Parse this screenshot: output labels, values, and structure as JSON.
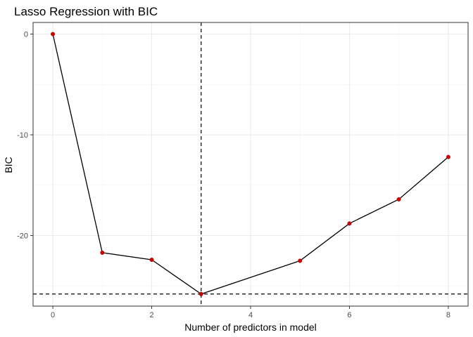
{
  "chart_data": {
    "type": "line",
    "title": "Lasso Regression with BIC",
    "xlabel": "Number of predictors in model",
    "ylabel": "BIC",
    "xlim": [
      -0.4,
      8.4
    ],
    "ylim": [
      -27.0,
      1.15
    ],
    "x_ticks": [
      0,
      2,
      4,
      6,
      8
    ],
    "y_ticks": [
      0,
      -10,
      -20
    ],
    "grid": true,
    "series": [
      {
        "x": [
          0,
          1,
          2,
          3,
          5,
          6,
          7,
          8
        ],
        "y": [
          0,
          -21.7,
          -22.4,
          -25.8,
          -22.5,
          -18.8,
          -16.4,
          -12.2
        ]
      }
    ],
    "reference_lines": {
      "vertical_x": 3,
      "horizontal_y": -25.8
    },
    "colors": {
      "line": "#000000",
      "point": "#cc0000",
      "grid_major": "#ebebeb",
      "grid_minor": "#f4f4f4",
      "panel_border": "#333333",
      "reference": "#000000"
    }
  }
}
